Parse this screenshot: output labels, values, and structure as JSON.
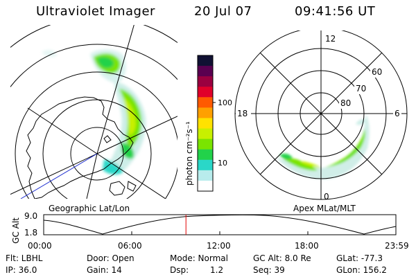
{
  "header": {
    "instrument": "Ultraviolet Imager",
    "date": "20 Jul 07",
    "time": "09:41:56 UT"
  },
  "left_panel": {
    "caption": "Geographic Lat/Lon"
  },
  "colorbar": {
    "unit_label": "photon cm⁻²s⁻¹",
    "tick_labels": [
      "100",
      "10"
    ],
    "colors": [
      "#111133",
      "#5a0050",
      "#9a0040",
      "#e0002a",
      "#ff5a00",
      "#ffa000",
      "#ffe200",
      "#c8f000",
      "#7ae400",
      "#22d24a",
      "#2ad7c8",
      "#b8ecec",
      "#ffffff"
    ]
  },
  "right_panel": {
    "caption": "Apex MLat/MLT",
    "mlt_labels": {
      "top": "12",
      "left": "18",
      "right": "6",
      "bottom": "0"
    },
    "lat_labels": [
      "60",
      "70",
      "80"
    ]
  },
  "timeline": {
    "axis_label": "GC Alt",
    "y_top": "9.0",
    "y_bottom": "1.8",
    "x_labels": [
      "00:00",
      "06:00",
      "12:00",
      "18:00",
      "23:59"
    ],
    "current_time_fraction": 0.404,
    "marker_color": "#e00000"
  },
  "info": {
    "row1": {
      "filter": "Flt: LBHL",
      "door": "Door: Open",
      "mode": "Mode: Normal",
      "gc_alt": "GC Alt: 8.0 Re",
      "glat": "GLat: -77.3"
    },
    "row2": {
      "ip": "IP: 36.0",
      "gain": "Gain: 14",
      "dsp_label": "Dsp:",
      "dsp_value": "1.2",
      "seq": "Seq: 39",
      "glon": "GLon: 156.2"
    }
  }
}
